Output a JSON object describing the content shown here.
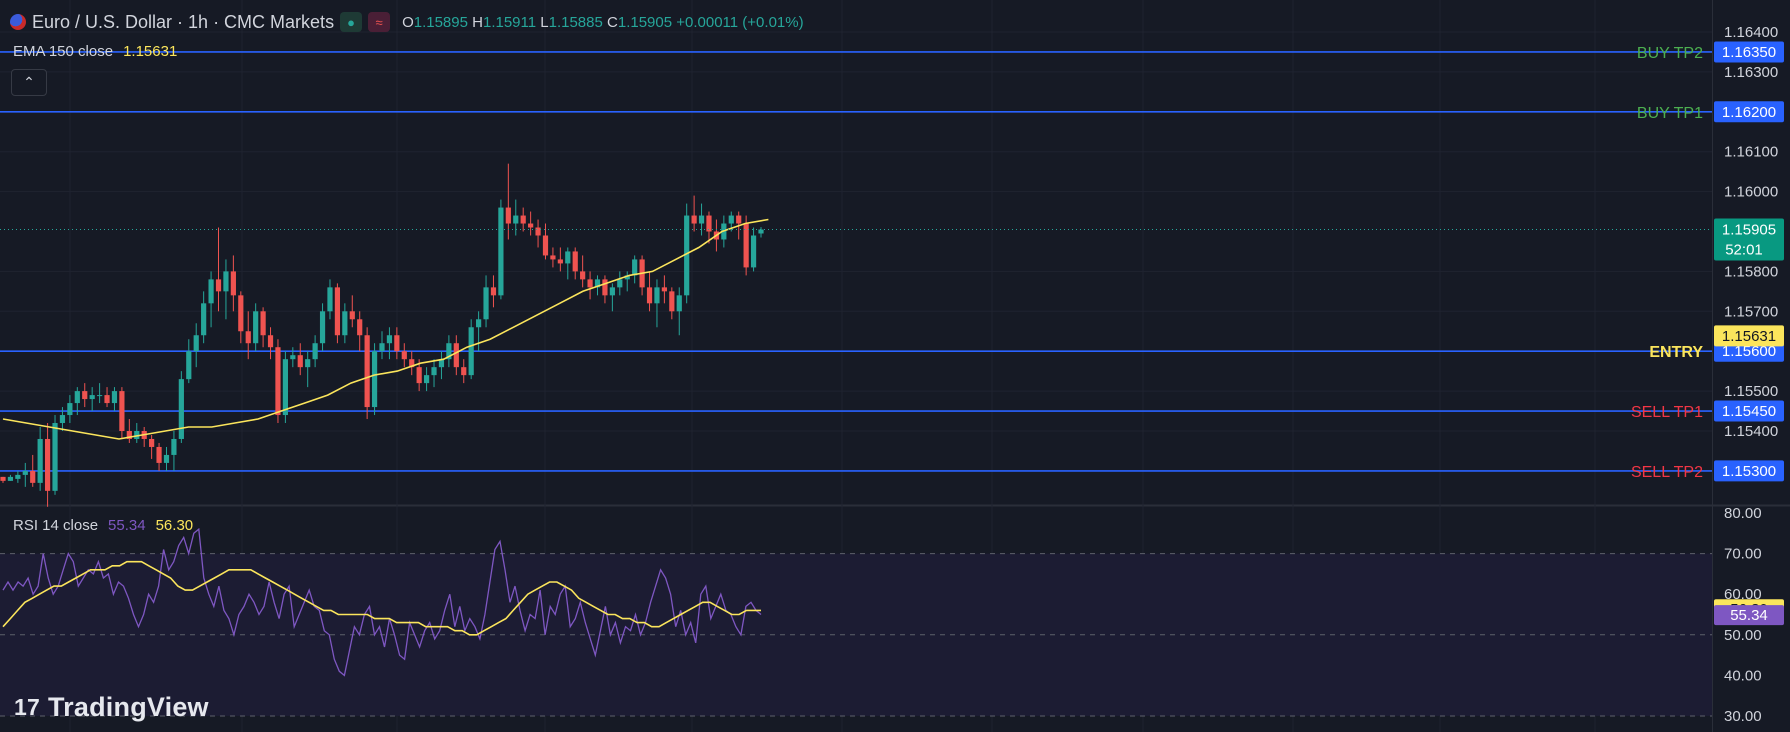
{
  "header": {
    "symbol": "Euro / U.S. Dollar · 1h · CMC Markets",
    "open_label": "O",
    "open": "1.15895",
    "high_label": "H",
    "high": "1.15911",
    "low_label": "L",
    "low": "1.15885",
    "close_label": "C",
    "close": "1.15905",
    "change": "+0.00011 (+0.01%)"
  },
  "ema_indicator": {
    "label": "EMA 150 close",
    "value": "1.15631"
  },
  "rsi_indicator": {
    "label": "RSI 14 close",
    "rsi_value": "55.34",
    "ma_value": "56.30"
  },
  "price_badge": {
    "price": "1.15905",
    "countdown": "52:01"
  },
  "collapse_icon": "chevron-up-icon",
  "branding": {
    "logo_mark": "17",
    "logo_text": "TradingView"
  },
  "colors": {
    "background": "#161a25",
    "level_line": "#2962ff",
    "up": "#26a69a",
    "down": "#ef5350",
    "ema": "#fbe55c",
    "rsi": "#7e57c2",
    "rsi_ma": "#fbe55c",
    "buy_tp_text": "#4caf50",
    "sell_tp_text": "#f23645",
    "entry_text": "#fbe55c"
  },
  "chart_data": [
    {
      "type": "candlestick",
      "ylim": [
        1.1525,
        1.1648
      ],
      "yticks": [
        "1.16400",
        "1.16300",
        "1.16100",
        "1.16000",
        "1.15800",
        "1.15700",
        "1.15500",
        "1.15400"
      ],
      "levels": [
        {
          "label": "BUY TP2",
          "price": "1.16350",
          "kind": "buy"
        },
        {
          "label": "BUY TP1",
          "price": "1.16200",
          "kind": "buy"
        },
        {
          "label": "ENTRY",
          "price": "1.15600",
          "kind": "entry"
        },
        {
          "label": "SELL TP1",
          "price": "1.15450",
          "kind": "sell"
        },
        {
          "label": "SELL TP2",
          "price": "1.15300",
          "kind": "sell"
        }
      ],
      "ema_badge": "1.15631",
      "last_price": 1.15905,
      "candles": [
        [
          1.15285,
          1.15285,
          1.1527,
          1.15275
        ],
        [
          1.15275,
          1.1529,
          1.15275,
          1.15285
        ],
        [
          1.1528,
          1.153,
          1.1527,
          1.1529
        ],
        [
          1.1529,
          1.1532,
          1.1526,
          1.153
        ],
        [
          1.153,
          1.1534,
          1.1526,
          1.1527
        ],
        [
          1.1527,
          1.1541,
          1.1525,
          1.1538
        ],
        [
          1.1538,
          1.1542,
          1.1521,
          1.1525
        ],
        [
          1.1525,
          1.1544,
          1.1524,
          1.1542
        ],
        [
          1.1542,
          1.1546,
          1.154,
          1.1544
        ],
        [
          1.1544,
          1.1549,
          1.1542,
          1.1547
        ],
        [
          1.1547,
          1.1551,
          1.1544,
          1.155
        ],
        [
          1.155,
          1.1552,
          1.1546,
          1.1548
        ],
        [
          1.1548,
          1.1551,
          1.1545,
          1.1549
        ],
        [
          1.1549,
          1.1552,
          1.1547,
          1.1549
        ],
        [
          1.1549,
          1.1551,
          1.1546,
          1.1547
        ],
        [
          1.1547,
          1.1551,
          1.1545,
          1.155
        ],
        [
          1.155,
          1.1551,
          1.1538,
          1.154
        ],
        [
          1.154,
          1.1543,
          1.1537,
          1.1538
        ],
        [
          1.1538,
          1.1542,
          1.1537,
          1.154
        ],
        [
          1.154,
          1.1541,
          1.1536,
          1.1538
        ],
        [
          1.1538,
          1.1539,
          1.1533,
          1.1536
        ],
        [
          1.1536,
          1.1537,
          1.153,
          1.1532
        ],
        [
          1.1532,
          1.1536,
          1.153,
          1.1534
        ],
        [
          1.1534,
          1.154,
          1.153,
          1.1538
        ],
        [
          1.1538,
          1.1555,
          1.1537,
          1.1553
        ],
        [
          1.1553,
          1.1563,
          1.1552,
          1.156
        ],
        [
          1.156,
          1.1567,
          1.1556,
          1.1564
        ],
        [
          1.1564,
          1.1575,
          1.1562,
          1.1572
        ],
        [
          1.1572,
          1.158,
          1.1566,
          1.1578
        ],
        [
          1.1578,
          1.1591,
          1.157,
          1.1575
        ],
        [
          1.1575,
          1.1583,
          1.1568,
          1.158
        ],
        [
          1.158,
          1.1584,
          1.157,
          1.1574
        ],
        [
          1.1574,
          1.1575,
          1.1562,
          1.1565
        ],
        [
          1.1565,
          1.157,
          1.1558,
          1.1562
        ],
        [
          1.1562,
          1.1572,
          1.156,
          1.157
        ],
        [
          1.157,
          1.1571,
          1.1561,
          1.1564
        ],
        [
          1.1564,
          1.1566,
          1.1558,
          1.1561
        ],
        [
          1.1561,
          1.1563,
          1.1542,
          1.1544
        ],
        [
          1.1544,
          1.156,
          1.1542,
          1.1558
        ],
        [
          1.1558,
          1.1561,
          1.1556,
          1.1559
        ],
        [
          1.1559,
          1.1562,
          1.1554,
          1.1556
        ],
        [
          1.1556,
          1.156,
          1.1551,
          1.1558
        ],
        [
          1.1558,
          1.1564,
          1.1556,
          1.1562
        ],
        [
          1.1562,
          1.1572,
          1.156,
          1.157
        ],
        [
          1.157,
          1.1578,
          1.1568,
          1.1576
        ],
        [
          1.1576,
          1.1577,
          1.1562,
          1.1564
        ],
        [
          1.1564,
          1.1572,
          1.1562,
          1.157
        ],
        [
          1.157,
          1.1574,
          1.1566,
          1.1568
        ],
        [
          1.1568,
          1.157,
          1.156,
          1.1564
        ],
        [
          1.1564,
          1.1566,
          1.1543,
          1.1546
        ],
        [
          1.1546,
          1.1562,
          1.1544,
          1.156
        ],
        [
          1.156,
          1.1565,
          1.1558,
          1.1562
        ],
        [
          1.1562,
          1.1566,
          1.1558,
          1.1564
        ],
        [
          1.1564,
          1.1566,
          1.1558,
          1.156
        ],
        [
          1.156,
          1.1562,
          1.1556,
          1.1558
        ],
        [
          1.1558,
          1.156,
          1.1554,
          1.1556
        ],
        [
          1.1556,
          1.1558,
          1.155,
          1.1552
        ],
        [
          1.1552,
          1.1556,
          1.155,
          1.1554
        ],
        [
          1.1554,
          1.1558,
          1.1551,
          1.1556
        ],
        [
          1.1556,
          1.156,
          1.1553,
          1.1558
        ],
        [
          1.1558,
          1.1564,
          1.1556,
          1.1562
        ],
        [
          1.1562,
          1.1564,
          1.1554,
          1.1556
        ],
        [
          1.1556,
          1.1558,
          1.1552,
          1.1554
        ],
        [
          1.1554,
          1.1568,
          1.1553,
          1.1566
        ],
        [
          1.1566,
          1.157,
          1.156,
          1.1568
        ],
        [
          1.1568,
          1.1579,
          1.1566,
          1.1576
        ],
        [
          1.1576,
          1.1579,
          1.1571,
          1.1574
        ],
        [
          1.1574,
          1.1598,
          1.1573,
          1.1596
        ],
        [
          1.1596,
          1.1607,
          1.1588,
          1.1592
        ],
        [
          1.1592,
          1.1598,
          1.1589,
          1.1594
        ],
        [
          1.1594,
          1.1596,
          1.159,
          1.1592
        ],
        [
          1.1592,
          1.1595,
          1.1589,
          1.1591
        ],
        [
          1.1591,
          1.1593,
          1.1586,
          1.1589
        ],
        [
          1.1589,
          1.1592,
          1.1583,
          1.1584
        ],
        [
          1.1584,
          1.1586,
          1.1581,
          1.1583
        ],
        [
          1.1583,
          1.1586,
          1.158,
          1.1582
        ],
        [
          1.1582,
          1.1586,
          1.1578,
          1.1585
        ],
        [
          1.1585,
          1.1586,
          1.1578,
          1.158
        ],
        [
          1.158,
          1.1584,
          1.1576,
          1.1578
        ],
        [
          1.1578,
          1.158,
          1.1573,
          1.1576
        ],
        [
          1.1576,
          1.1579,
          1.1574,
          1.1578
        ],
        [
          1.1578,
          1.1579,
          1.1572,
          1.1574
        ],
        [
          1.1574,
          1.1577,
          1.157,
          1.1576
        ],
        [
          1.1576,
          1.158,
          1.1574,
          1.1578
        ],
        [
          1.1578,
          1.158,
          1.1575,
          1.1579
        ],
        [
          1.1579,
          1.1584,
          1.1577,
          1.1583
        ],
        [
          1.1583,
          1.1584,
          1.1574,
          1.1576
        ],
        [
          1.1576,
          1.158,
          1.157,
          1.1572
        ],
        [
          1.1572,
          1.1578,
          1.1566,
          1.1576
        ],
        [
          1.1576,
          1.1579,
          1.1572,
          1.1575
        ],
        [
          1.1575,
          1.1576,
          1.1568,
          1.157
        ],
        [
          1.157,
          1.1576,
          1.1564,
          1.1574
        ],
        [
          1.1574,
          1.1597,
          1.1572,
          1.1594
        ],
        [
          1.1594,
          1.1599,
          1.159,
          1.1592
        ],
        [
          1.1592,
          1.1597,
          1.1589,
          1.1594
        ],
        [
          1.1594,
          1.1595,
          1.1587,
          1.159
        ],
        [
          1.159,
          1.1593,
          1.1585,
          1.1588
        ],
        [
          1.1588,
          1.1594,
          1.1586,
          1.1592
        ],
        [
          1.1592,
          1.1595,
          1.159,
          1.1594
        ],
        [
          1.1594,
          1.1595,
          1.1588,
          1.1592
        ],
        [
          1.1592,
          1.1594,
          1.1579,
          1.1581
        ],
        [
          1.1581,
          1.1591,
          1.158,
          1.1589
        ],
        [
          1.15895,
          1.15911,
          1.15885,
          1.15905
        ]
      ],
      "ema": [
        1.1543,
        1.1542,
        1.1541,
        1.154,
        1.1539,
        1.1538,
        1.1539,
        1.154,
        1.1541,
        1.1541,
        1.1542,
        1.1543,
        1.1545,
        1.1547,
        1.1549,
        1.1552,
        1.1554,
        1.1555,
        1.1557,
        1.1558,
        1.1561,
        1.1563,
        1.1566,
        1.1569,
        1.1572,
        1.1575,
        1.1577,
        1.1579,
        1.158,
        1.1583,
        1.1586,
        1.159,
        1.1592,
        1.1593
      ],
      "ema_range": [
        0,
        103
      ]
    },
    {
      "type": "line",
      "title": "RSI 14 close",
      "ylim": [
        30,
        80
      ],
      "yticks": [
        "80.00",
        "70.00",
        "60.00",
        "50.00",
        "40.00",
        "30.00"
      ],
      "bands": [
        70,
        50,
        30
      ],
      "series": [
        {
          "name": "RSI",
          "values": [
            61,
            63,
            61,
            63,
            62,
            64,
            60,
            62,
            70,
            64,
            60,
            62,
            66,
            70,
            68,
            62,
            64,
            66,
            65,
            68,
            64,
            65,
            60,
            63,
            62,
            59,
            55,
            52,
            55,
            60,
            58,
            62,
            71,
            66,
            68,
            72,
            74,
            70,
            75,
            76,
            64,
            60,
            57,
            62,
            56,
            54,
            50,
            55,
            57,
            60,
            58,
            55,
            57,
            63,
            58,
            54,
            60,
            62,
            52,
            55,
            58,
            61,
            57,
            56,
            51,
            50,
            44,
            41,
            40,
            46,
            52,
            50,
            55,
            57,
            50,
            52,
            47,
            54,
            50,
            45,
            44,
            53,
            50,
            47,
            51,
            53,
            49,
            51,
            56,
            60,
            52,
            57,
            51,
            54,
            52,
            49,
            55,
            63,
            71,
            73,
            66,
            58,
            62,
            56,
            51,
            55,
            54,
            61,
            50,
            57,
            55,
            60,
            62,
            52,
            54,
            58,
            53,
            49,
            45,
            51,
            57,
            50,
            53,
            48,
            52,
            51,
            55,
            50,
            53,
            58,
            62,
            66,
            64,
            60,
            52,
            56,
            50,
            53,
            48,
            60,
            62,
            54,
            57,
            60,
            56,
            55,
            52,
            50,
            57,
            58,
            56,
            55
          ],
          "color": "#7e57c2"
        },
        {
          "name": "RSI MA",
          "values": [
            52,
            54,
            56,
            58,
            59,
            60,
            61,
            62,
            62,
            63,
            64,
            65,
            66,
            66,
            66,
            67,
            67,
            68,
            68,
            68,
            67,
            66,
            65,
            64,
            62,
            61,
            61,
            62,
            63,
            64,
            65,
            66,
            66,
            66,
            66,
            65,
            64,
            63,
            62,
            61,
            60,
            59,
            58,
            57,
            56,
            56,
            55,
            55,
            55,
            55,
            55,
            54,
            54,
            54,
            53,
            53,
            53,
            53,
            52,
            52,
            52,
            52,
            51,
            51,
            50,
            50,
            51,
            52,
            53,
            54,
            56,
            58,
            60,
            61,
            62,
            63,
            63,
            62,
            61,
            59,
            58,
            57,
            56,
            55,
            55,
            54,
            54,
            53,
            53,
            52,
            52,
            53,
            54,
            55,
            56,
            57,
            58,
            58,
            57,
            56,
            55,
            55,
            56,
            56,
            56
          ],
          "color": "#fbe55c"
        }
      ],
      "last_rsi": 55.34,
      "last_ma": 56.3
    }
  ]
}
